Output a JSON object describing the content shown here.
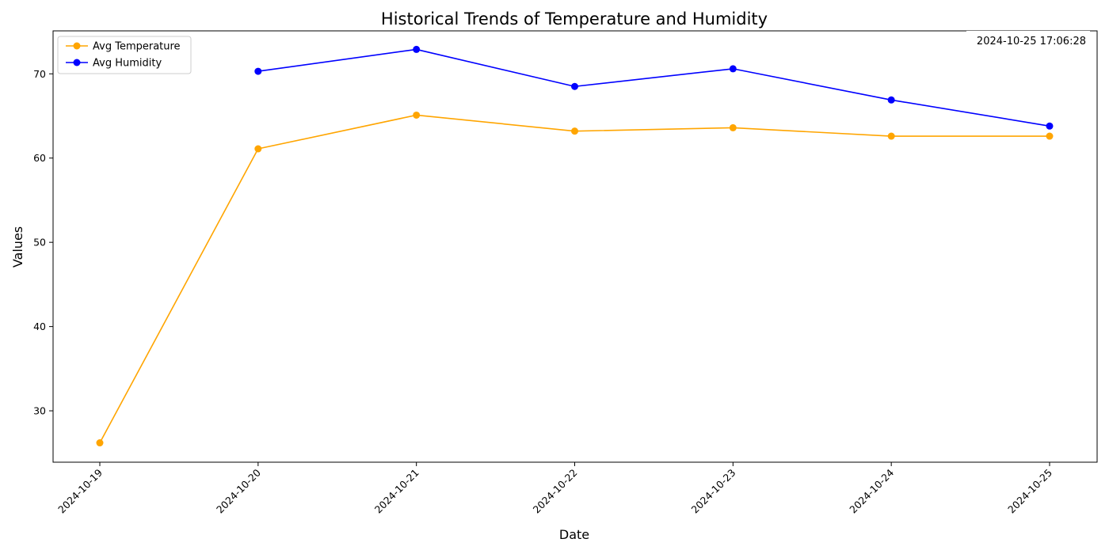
{
  "chart_data": {
    "type": "line",
    "title": "Historical Trends of Temperature and Humidity",
    "xlabel": "Date",
    "ylabel": "Values",
    "categories": [
      "2024-10-19",
      "2024-10-20",
      "2024-10-21",
      "2024-10-22",
      "2024-10-23",
      "2024-10-24",
      "2024-10-25"
    ],
    "yticks": [
      30,
      40,
      50,
      60,
      70
    ],
    "ylim": [
      23.9,
      75.1
    ],
    "grid": false,
    "legend_position": "top-left",
    "series": [
      {
        "name": "Avg Temperature",
        "color": "#ffa500",
        "marker": "circle",
        "values": [
          26.2,
          61.1,
          65.1,
          63.2,
          63.6,
          62.6,
          62.6
        ]
      },
      {
        "name": "Avg Humidity",
        "color": "#0000ff",
        "marker": "circle",
        "values": [
          null,
          70.3,
          72.9,
          68.5,
          70.6,
          66.9,
          63.8
        ]
      }
    ],
    "annotation": "2024-10-25 17:06:28"
  }
}
